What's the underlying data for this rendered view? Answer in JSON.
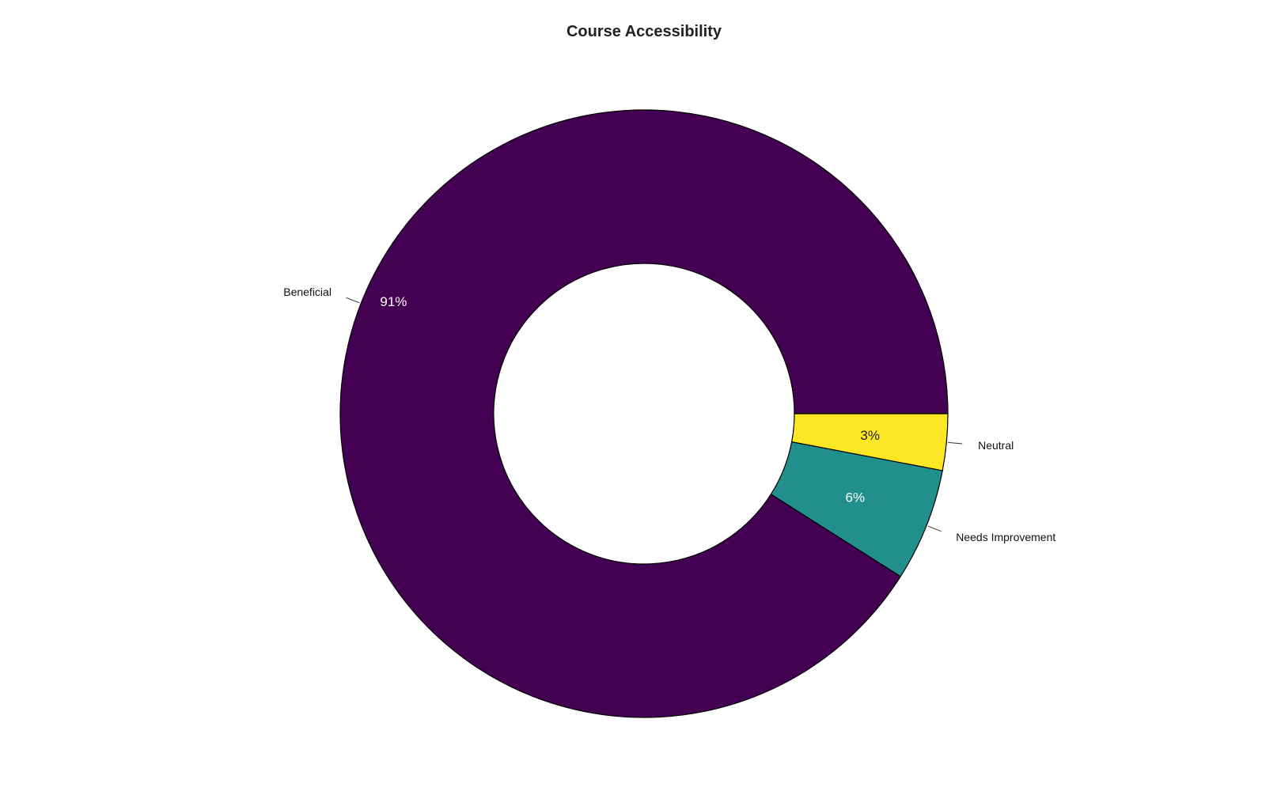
{
  "chart_data": {
    "type": "pie",
    "subtype": "donut",
    "title": "Course Accessibility",
    "slices": [
      {
        "label": "Beneficial",
        "value": 91,
        "pct_label": "91%",
        "color": "#440154",
        "text_color": "#ffffff"
      },
      {
        "label": "Needs Improvement",
        "value": 6,
        "pct_label": "6%",
        "color": "#21908C",
        "text_color": "#ffffff"
      },
      {
        "label": "Neutral",
        "value": 3,
        "pct_label": "3%",
        "color": "#FDE725",
        "text_color": "#222222"
      }
    ],
    "legend": "none",
    "direction": "clockwise",
    "start": "right (3 o'clock)"
  }
}
